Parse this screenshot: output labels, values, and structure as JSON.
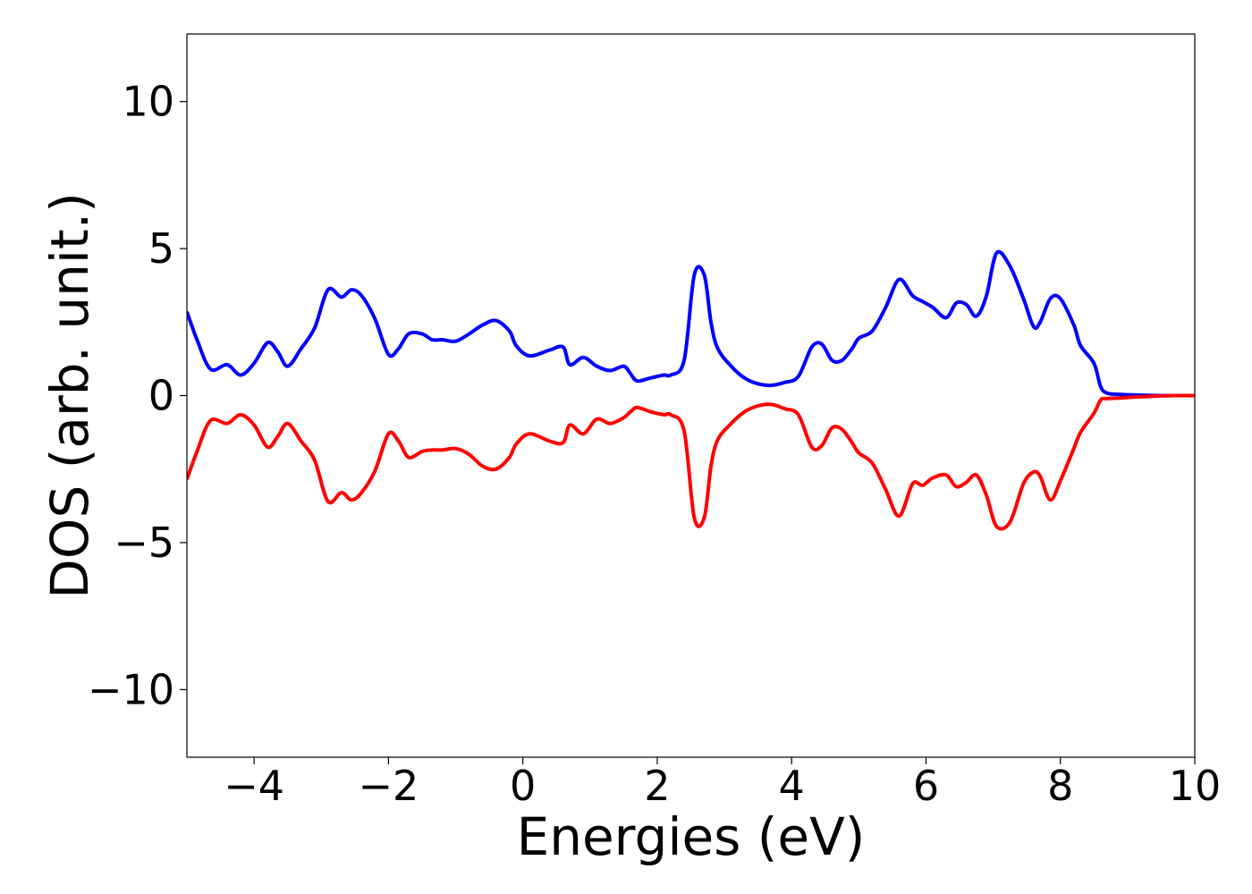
{
  "chart_data": {
    "type": "line",
    "xlabel": "Energies (eV)",
    "ylabel": "DOS (arb. unit.)",
    "xlim": [
      -5,
      10
    ],
    "ylim": [
      -12.3,
      12.3
    ],
    "grid": false,
    "xticks": [
      -4,
      -2,
      0,
      2,
      4,
      6,
      8,
      10
    ],
    "xtick_labels": [
      "−4",
      "−2",
      "0",
      "2",
      "4",
      "6",
      "8",
      "10"
    ],
    "yticks": [
      -10,
      -5,
      0,
      5,
      10
    ],
    "ytick_labels": [
      "−10",
      "−5",
      "0",
      "5",
      "10"
    ],
    "series": [
      {
        "color": "#0000ff",
        "x": [
          -5.0,
          -4.85,
          -4.65,
          -4.4,
          -4.2,
          -4.0,
          -3.8,
          -3.65,
          -3.5,
          -3.3,
          -3.1,
          -2.9,
          -2.7,
          -2.55,
          -2.4,
          -2.2,
          -2.0,
          -1.85,
          -1.7,
          -1.5,
          -1.35,
          -1.2,
          -1.0,
          -0.8,
          -0.6,
          -0.4,
          -0.2,
          -0.1,
          0.1,
          0.4,
          0.6,
          0.7,
          0.9,
          1.1,
          1.3,
          1.5,
          1.6,
          1.7,
          1.9,
          2.1,
          2.2,
          2.4,
          2.55,
          2.7,
          2.8,
          2.9,
          3.1,
          3.3,
          3.5,
          3.7,
          3.9,
          4.1,
          4.3,
          4.45,
          4.6,
          4.75,
          4.9,
          5.0,
          5.2,
          5.4,
          5.6,
          5.8,
          5.95,
          6.1,
          6.3,
          6.45,
          6.6,
          6.75,
          6.9,
          7.05,
          7.25,
          7.45,
          7.6,
          7.7,
          7.85,
          8.0,
          8.2,
          8.3,
          8.5,
          8.6,
          8.7,
          8.9,
          9.1,
          9.3,
          9.5,
          9.7,
          10.0
        ],
        "y": [
          2.85,
          1.9,
          0.9,
          1.05,
          0.7,
          1.1,
          1.8,
          1.5,
          1.0,
          1.6,
          2.3,
          3.6,
          3.35,
          3.6,
          3.4,
          2.6,
          1.4,
          1.6,
          2.1,
          2.1,
          1.9,
          1.9,
          1.85,
          2.1,
          2.4,
          2.55,
          2.2,
          1.7,
          1.35,
          1.55,
          1.65,
          1.05,
          1.3,
          1.0,
          0.85,
          1.0,
          0.75,
          0.5,
          0.6,
          0.7,
          0.7,
          1.2,
          4.1,
          4.1,
          2.5,
          1.6,
          1.0,
          0.6,
          0.4,
          0.35,
          0.45,
          0.65,
          1.65,
          1.75,
          1.2,
          1.2,
          1.6,
          1.95,
          2.2,
          3.0,
          3.95,
          3.4,
          3.2,
          3.0,
          2.65,
          3.15,
          3.1,
          2.7,
          3.4,
          4.85,
          4.4,
          3.3,
          2.35,
          2.5,
          3.3,
          3.3,
          2.4,
          1.7,
          1.1,
          0.3,
          0.08,
          0.04,
          0.02,
          0.01,
          0.0,
          0.0,
          0.0
        ]
      },
      {
        "color": "#ff0000",
        "x": [
          -5.0,
          -4.85,
          -4.65,
          -4.4,
          -4.2,
          -4.0,
          -3.8,
          -3.65,
          -3.5,
          -3.3,
          -3.1,
          -2.9,
          -2.7,
          -2.55,
          -2.4,
          -2.2,
          -2.0,
          -1.85,
          -1.7,
          -1.5,
          -1.35,
          -1.2,
          -1.0,
          -0.8,
          -0.6,
          -0.4,
          -0.2,
          -0.1,
          0.1,
          0.4,
          0.6,
          0.7,
          0.9,
          1.1,
          1.3,
          1.5,
          1.6,
          1.7,
          1.9,
          2.1,
          2.2,
          2.4,
          2.55,
          2.7,
          2.8,
          2.9,
          3.1,
          3.3,
          3.5,
          3.7,
          3.9,
          4.1,
          4.3,
          4.45,
          4.6,
          4.75,
          4.9,
          5.0,
          5.2,
          5.4,
          5.6,
          5.8,
          5.95,
          6.1,
          6.3,
          6.45,
          6.6,
          6.75,
          6.9,
          7.05,
          7.25,
          7.45,
          7.6,
          7.7,
          7.85,
          8.0,
          8.2,
          8.3,
          8.5,
          8.6,
          8.7,
          8.9,
          9.1,
          9.3,
          9.5,
          9.7,
          10.0
        ],
        "y": [
          -2.85,
          -1.9,
          -0.85,
          -0.95,
          -0.65,
          -1.0,
          -1.75,
          -1.4,
          -0.95,
          -1.55,
          -2.2,
          -3.6,
          -3.3,
          -3.55,
          -3.3,
          -2.55,
          -1.3,
          -1.55,
          -2.1,
          -1.9,
          -1.85,
          -1.85,
          -1.8,
          -2.0,
          -2.4,
          -2.5,
          -2.1,
          -1.65,
          -1.3,
          -1.55,
          -1.6,
          -1.0,
          -1.3,
          -0.8,
          -0.95,
          -0.75,
          -0.55,
          -0.4,
          -0.55,
          -0.65,
          -0.65,
          -1.2,
          -4.15,
          -4.15,
          -2.4,
          -1.5,
          -0.95,
          -0.55,
          -0.35,
          -0.3,
          -0.45,
          -0.65,
          -1.75,
          -1.7,
          -1.1,
          -1.15,
          -1.6,
          -1.95,
          -2.3,
          -3.2,
          -4.1,
          -3.0,
          -3.05,
          -2.8,
          -2.7,
          -3.1,
          -2.95,
          -2.7,
          -3.4,
          -4.45,
          -4.3,
          -3.0,
          -2.6,
          -2.75,
          -3.55,
          -2.9,
          -1.8,
          -1.25,
          -0.6,
          -0.15,
          -0.1,
          -0.08,
          -0.05,
          -0.03,
          -0.01,
          0.0,
          0.0
        ]
      }
    ]
  }
}
